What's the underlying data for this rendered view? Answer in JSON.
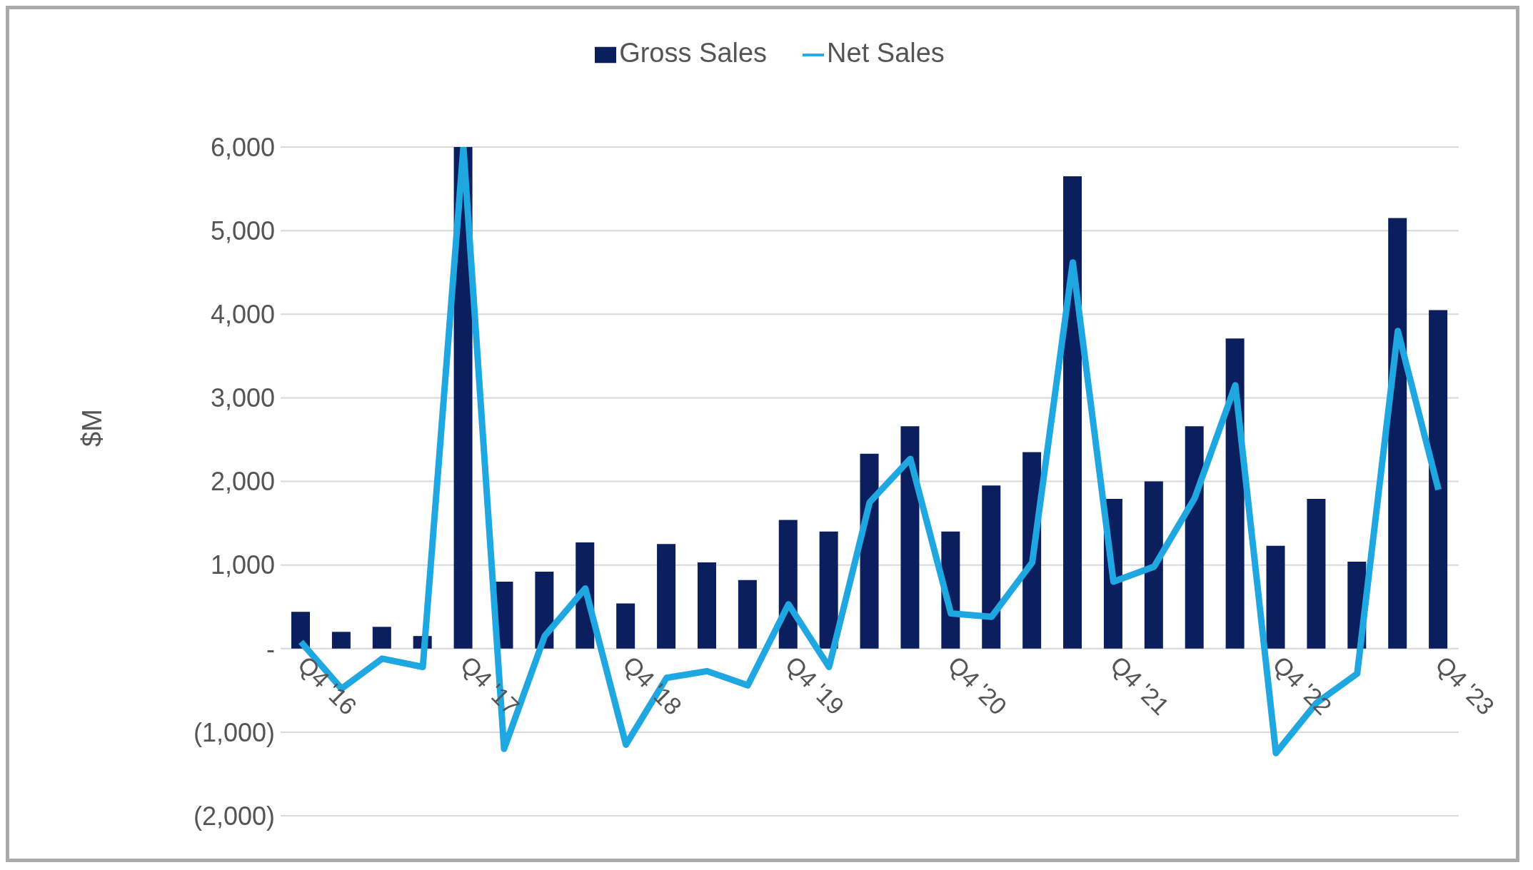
{
  "chart_data": {
    "type": "bar",
    "ylabel": "$M",
    "categories": [
      "Q4 '16",
      null,
      null,
      null,
      "Q4 '17",
      null,
      null,
      null,
      "Q4 '18",
      null,
      null,
      null,
      "Q4 '19",
      null,
      null,
      null,
      "Q4 '20",
      null,
      null,
      null,
      "Q4 '21",
      null,
      null,
      null,
      "Q4 '22",
      null,
      null,
      null,
      "Q4 '23"
    ],
    "series": [
      {
        "name": "Gross Sales",
        "color": "#0b1f5e",
        "values": [
          440,
          200,
          260,
          150,
          6000,
          800,
          920,
          1270,
          540,
          1250,
          1030,
          820,
          1540,
          1400,
          2330,
          2660,
          1400,
          1950,
          2350,
          5650,
          1790,
          2000,
          2660,
          3710,
          1230,
          1790,
          1040,
          5150,
          4050
        ]
      },
      {
        "name": "Net Sales",
        "type": "line",
        "color": "#1ea7e1",
        "values": [
          80,
          -480,
          -120,
          -220,
          6000,
          -1200,
          150,
          720,
          -1150,
          -350,
          -270,
          -440,
          530,
          -220,
          1750,
          2270,
          420,
          380,
          1030,
          4620,
          800,
          980,
          1800,
          3150,
          -1250,
          -650,
          -300,
          3800,
          1900
        ]
      }
    ],
    "ylim": [
      -2000,
      6000
    ],
    "yticks": [
      {
        "value": -2000,
        "label": "(2,000)"
      },
      {
        "value": -1000,
        "label": "(1,000)"
      },
      {
        "value": 0,
        "label": "-"
      },
      {
        "value": 1000,
        "label": "1,000"
      },
      {
        "value": 2000,
        "label": "2,000"
      },
      {
        "value": 3000,
        "label": "3,000"
      },
      {
        "value": 4000,
        "label": "4,000"
      },
      {
        "value": 5000,
        "label": "5,000"
      },
      {
        "value": 6000,
        "label": "6,000"
      }
    ],
    "grid": "y",
    "legend": "top",
    "marker": "none"
  }
}
